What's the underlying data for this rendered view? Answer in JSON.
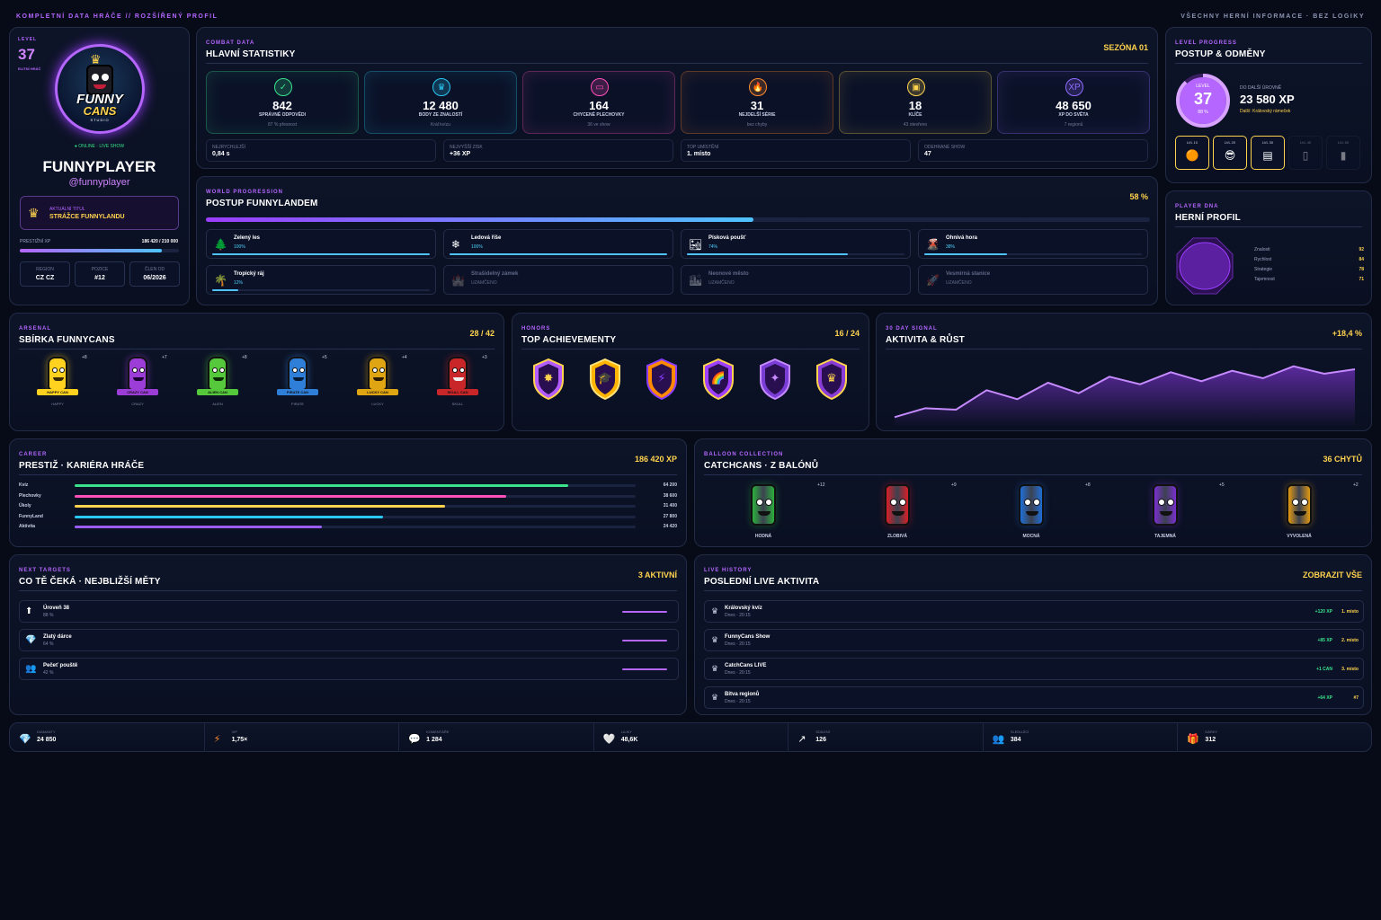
{
  "topbar": {
    "left": "KOMPLETNÍ DATA HRÁČE // ROZŠÍŘENÝ PROFIL",
    "right": "VŠECHNY HERNÍ INFORMACE · BEZ LOGIKY"
  },
  "profile": {
    "level_label": "LEVEL",
    "level": "37",
    "rank": "ELITNÍ HRÁČ",
    "logo_top": "FUNNY",
    "logo_bottom": "CANS",
    "logo_sub": "STUDIO",
    "status": "● ONLINE · LIVE SHOW",
    "name": "FUNNYPLAYER",
    "handle": "@funnyplayer",
    "title_label": "AKTUÁLNÍ TITUL",
    "title": "STRÁŽCE FUNNYLANDU",
    "prestige_label": "PRESTIŽNÍ XP",
    "prestige_value": "186 420 / 210 000",
    "prestige_pct": 0.89,
    "cells": [
      {
        "l": "REGION",
        "v": "CZ CZ"
      },
      {
        "l": "POZICE",
        "v": "#12"
      },
      {
        "l": "ČLEN OD",
        "v": "06/2026"
      }
    ]
  },
  "combat": {
    "kicker": "COMBAT DATA",
    "title": "HLAVNÍ STATISTIKY",
    "season": "SEZÓNA 01",
    "stats": [
      {
        "icon": "✓",
        "num": "842",
        "label": "SPRÁVNÉ ODPOVĚDI",
        "sub": "87 % přesnost",
        "color": "#39e28b"
      },
      {
        "icon": "♛",
        "num": "12 480",
        "label": "BODY ZE ZNALOSTÍ",
        "sub": "Král kvízu",
        "color": "#29c7f3"
      },
      {
        "icon": "▭",
        "num": "164",
        "label": "CHYCENÉ PLECHOVKY",
        "sub": "36 ve show",
        "color": "#ff4fb8"
      },
      {
        "icon": "🔥",
        "num": "31",
        "label": "NEJDELŠÍ SÉRIE",
        "sub": "bez chyby",
        "color": "#ff8a2b"
      },
      {
        "icon": "▣",
        "num": "18",
        "label": "KLÍČE",
        "sub": "43 otevřeno",
        "color": "#ffd34d"
      },
      {
        "icon": "XP",
        "num": "48 650",
        "label": "XP DO SVĚTA",
        "sub": "7 regionů",
        "color": "#8f6bff"
      }
    ],
    "minis": [
      {
        "t": "NEJRYCHLEJŠÍ",
        "v": "0,84 s"
      },
      {
        "t": "NEJVYŠŠÍ ZISK",
        "v": "+36 XP"
      },
      {
        "t": "TOP UMÍSTĚNÍ",
        "v": "1. místo"
      },
      {
        "t": "ODEHRANÉ SHOW",
        "v": "47"
      }
    ]
  },
  "level_progress": {
    "kicker": "LEVEL PROGRESS",
    "title": "POSTUP & ODMĚNY",
    "ring_label": "LEVEL",
    "ring_level": "37",
    "ring_pct_text": "88 %",
    "ring_pct": 0.88,
    "next_label": "DO DALŠÍ ÚROVNĚ",
    "next_xp": "23 580 XP",
    "next_reward": "Další: Královský rámeček",
    "rewards": [
      {
        "l": "LVL 10",
        "i": "🟠",
        "locked": false
      },
      {
        "l": "LVL 20",
        "i": "😎",
        "locked": false
      },
      {
        "l": "LVL 30",
        "i": "▤",
        "locked": false
      },
      {
        "l": "LVL 40",
        "i": "▯",
        "locked": true
      },
      {
        "l": "LVL 50",
        "i": "▮",
        "locked": true
      }
    ]
  },
  "world": {
    "kicker": "WORLD PROGRESSION",
    "title": "POSTUP FUNNYLANDEM",
    "pct_text": "58 %",
    "pct": 0.58,
    "regions": [
      {
        "icon": "🌲",
        "name": "Zelený les",
        "pct_text": "100%",
        "pct": 1,
        "locked": false
      },
      {
        "icon": "❄",
        "name": "Ledová říše",
        "pct_text": "100%",
        "pct": 1,
        "locked": false
      },
      {
        "icon": "🏜",
        "name": "Písková poušť",
        "pct_text": "74%",
        "pct": 0.74,
        "locked": false
      },
      {
        "icon": "🌋",
        "name": "Ohnivá hora",
        "pct_text": "38%",
        "pct": 0.38,
        "locked": false
      },
      {
        "icon": "🌴",
        "name": "Tropický ráj",
        "pct_text": "12%",
        "pct": 0.12,
        "locked": false
      },
      {
        "icon": "🏰",
        "name": "Strašidelný zámek",
        "pct_text": "UZAMČENO",
        "pct": 0,
        "locked": true
      },
      {
        "icon": "🏙",
        "name": "Neonové město",
        "pct_text": "UZAMČENO",
        "pct": 0,
        "locked": true
      },
      {
        "icon": "🚀",
        "name": "Vesmírná stanice",
        "pct_text": "UZAMČENO",
        "pct": 0,
        "locked": true
      }
    ]
  },
  "dna": {
    "kicker": "PLAYER DNA",
    "title": "HERNÍ PROFIL",
    "rows": [
      {
        "l": "Znalosti",
        "v": "92"
      },
      {
        "l": "Rychlost",
        "v": "84"
      },
      {
        "l": "Strategie",
        "v": "78"
      },
      {
        "l": "Tajemnost",
        "v": "71"
      }
    ]
  },
  "arsenal": {
    "kicker": "ARSENAL",
    "title": "SBÍRKA FUNNYCANS",
    "count": "28 / 42",
    "cans": [
      {
        "badge": "+8",
        "tag": "HAPPY CAN",
        "name": "HAPPY",
        "color": "#ffd21f",
        "face": "#3a2a00"
      },
      {
        "badge": "+7",
        "tag": "CRAZY CAN",
        "name": "CRAZY",
        "color": "#9b3dd6",
        "face": "#1a0030"
      },
      {
        "badge": "+8",
        "tag": "ALIEN CAN",
        "name": "ALIEN",
        "color": "#55c93b",
        "face": "#0b2a05"
      },
      {
        "badge": "+5",
        "tag": "PIRATE CAN",
        "name": "PIRATE",
        "color": "#2f7fd9",
        "face": "#061a35"
      },
      {
        "badge": "+4",
        "tag": "LUCKY CAN",
        "name": "LUCKY",
        "color": "#e0a513",
        "face": "#2a1a00"
      },
      {
        "badge": "+3",
        "tag": "SKULL CAN",
        "name": "SKULL",
        "color": "#c9262a",
        "face": "#eee"
      }
    ]
  },
  "honors": {
    "kicker": "HONORS",
    "title": "TOP ACHIEVEMENTY",
    "count": "16 / 24",
    "badges": [
      {
        "c1": "#b35cff",
        "c2": "#ffd34d",
        "glyph": "✸"
      },
      {
        "c1": "#ffb400",
        "c2": "#ffe27a",
        "glyph": "🎓"
      },
      {
        "c1": "#ff8a00",
        "c2": "#8a3dff",
        "glyph": "⚡"
      },
      {
        "c1": "#a040ff",
        "c2": "#ffd34d",
        "glyph": "🌈"
      },
      {
        "c1": "#7a3dd6",
        "c2": "#c58aff",
        "glyph": "✦"
      },
      {
        "c1": "#8a3dd6",
        "c2": "#ffd34d",
        "glyph": "♛"
      }
    ]
  },
  "signal": {
    "kicker": "30 DAY SIGNAL",
    "title": "AKTIVITA & RŮST",
    "delta": "+18,4 %",
    "values": [
      4,
      10,
      9,
      22,
      16,
      27,
      20,
      31,
      26,
      34,
      28,
      35,
      30,
      38,
      33,
      36
    ]
  },
  "career": {
    "kicker": "CAREER",
    "title": "PRESTIŽ · KARIÉRA HRÁČE",
    "total": "186 420 XP",
    "rows": [
      {
        "l": "Kvíz",
        "v": "64 200",
        "pct": 0.88,
        "color": "#39e28b"
      },
      {
        "l": "Plechovky",
        "v": "38 600",
        "pct": 0.77,
        "color": "#ff4fb8"
      },
      {
        "l": "Úkoly",
        "v": "31 400",
        "pct": 0.66,
        "color": "#ffd34d"
      },
      {
        "l": "FunnyLand",
        "v": "27 800",
        "pct": 0.55,
        "color": "#29c7f3"
      },
      {
        "l": "Aktivita",
        "v": "24 420",
        "pct": 0.44,
        "color": "#9b5cff"
      }
    ]
  },
  "balloon": {
    "kicker": "BALLOON COLLECTION",
    "title": "CATCHCANS · Z BALÓNŮ",
    "count": "36 CHYTŮ",
    "cans": [
      {
        "badge": "+12",
        "name": "HODNÁ",
        "color": "#2bb03c"
      },
      {
        "badge": "+9",
        "name": "ZLOBIVÁ",
        "color": "#d81f28"
      },
      {
        "badge": "+8",
        "name": "MOCNÁ",
        "color": "#1f6fd8"
      },
      {
        "badge": "+5",
        "name": "TAJEMNÁ",
        "color": "#7a2fd0"
      },
      {
        "badge": "+2",
        "name": "VYVOLENÁ",
        "color": "#e39a10"
      }
    ]
  },
  "targets": {
    "kicker": "NEXT TARGETS",
    "title": "CO TĚ ČEKÁ · NEJBLIŽŠÍ MĚTY",
    "count": "3 AKTIVNÍ",
    "items": [
      {
        "icon": "⬆",
        "name": "Úroveň 38",
        "pct": "88 %"
      },
      {
        "icon": "💎",
        "name": "Zlatý dárce",
        "pct": "64 %"
      },
      {
        "icon": "👥",
        "name": "Pečeť pouště",
        "pct": "42 %"
      }
    ]
  },
  "history": {
    "kicker": "LIVE HISTORY",
    "title": "POSLEDNÍ LIVE AKTIVITA",
    "link": "ZOBRAZIT VŠE",
    "items": [
      {
        "name": "Královský kvíz",
        "time": "Dnes · 20:15",
        "xp": "+120 XP",
        "rank": "1. místo"
      },
      {
        "name": "FunnyCans Show",
        "time": "Dnes · 20:15",
        "xp": "+85 XP",
        "rank": "2. místo"
      },
      {
        "name": "CatchCans LIVE",
        "time": "Dnes · 20:15",
        "xp": "+1 CAN",
        "rank": "3. místo"
      },
      {
        "name": "Bitva regionů",
        "time": "Dnes · 20:15",
        "xp": "+64 XP",
        "rank": "#7"
      }
    ]
  },
  "bottom": [
    {
      "icon": "💎",
      "l": "DIAMANTY",
      "v": "24 850",
      "c": "#29c7f3"
    },
    {
      "icon": "⚡",
      "l": "VIP",
      "v": "1,75×",
      "c": "#ff8a2b"
    },
    {
      "icon": "💬",
      "l": "KOMENTÁŘE",
      "v": "1 284",
      "c": "#c9cfe6"
    },
    {
      "icon": "🤍",
      "l": "LAJKY",
      "v": "48,6K",
      "c": "#fff"
    },
    {
      "icon": "↗",
      "l": "SDÍLENÍ",
      "v": "126",
      "c": "#fff"
    },
    {
      "icon": "👥",
      "l": "SLEDUJÍCÍ",
      "v": "384",
      "c": "#8f6bff"
    },
    {
      "icon": "🎁",
      "l": "DÁRKY",
      "v": "312",
      "c": "#ff4f4f"
    }
  ]
}
